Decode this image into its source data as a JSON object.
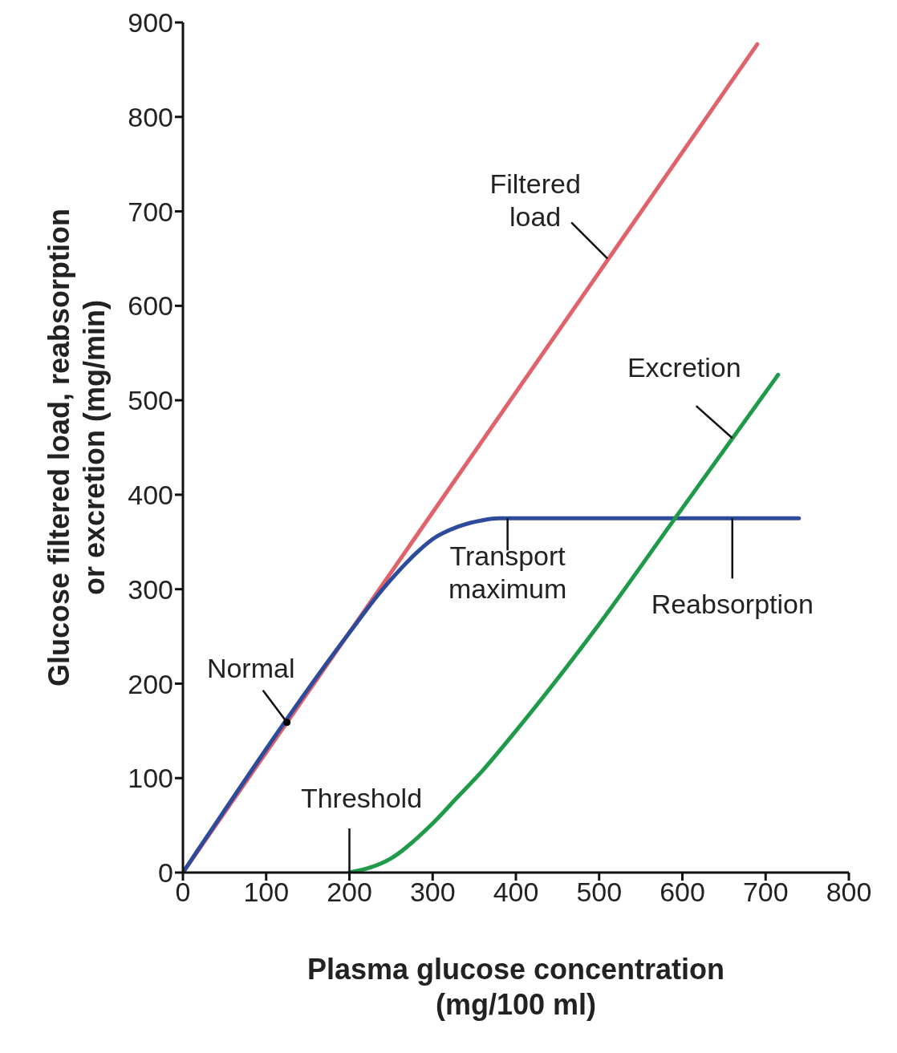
{
  "chart_data": {
    "type": "line",
    "xlabel": "Plasma glucose concentration\n(mg/100 ml)",
    "ylabel": "Glucose filtered load, reabsorption\nor excretion (mg/min)",
    "xlim": [
      0,
      800
    ],
    "xticks": [
      0,
      100,
      200,
      300,
      400,
      500,
      600,
      700,
      800
    ],
    "ylim": [
      0,
      900
    ],
    "yticks": [
      0,
      100,
      200,
      300,
      400,
      500,
      600,
      700,
      800,
      900
    ],
    "grid": false,
    "legend": false,
    "marker": "none",
    "line_style": "solid",
    "series": [
      {
        "color": "#e0636b",
        "x": [
          0,
          690
        ],
        "values": [
          0,
          877
        ]
      },
      {
        "color": "#2e4a9a",
        "x": [
          0,
          200,
          240,
          260,
          280,
          300,
          330,
          360,
          380,
          740
        ],
        "values": [
          0,
          254,
          300,
          320,
          338,
          353,
          366,
          373,
          375,
          375
        ]
      },
      {
        "color": "#1f9a48",
        "x": [
          200,
          250,
          300,
          330,
          360,
          400,
          500,
          592,
          715
        ],
        "values": [
          0,
          15,
          52,
          80,
          108,
          150,
          263,
          376,
          527
        ]
      },
      {
        "type": "scatter",
        "color": "#000000",
        "marker": "circle",
        "x": [
          125
        ],
        "values": [
          159
        ]
      }
    ],
    "annotations": [
      {
        "text": "Filtered\nload",
        "x": 510,
        "y": 650
      },
      {
        "text": "Excretion",
        "x": 660,
        "y": 460
      },
      {
        "text": "Transport\nmaximum",
        "x": 390,
        "y": 375
      },
      {
        "text": "Reabsorption",
        "x": 660,
        "y": 375
      },
      {
        "text": "Normal",
        "x": 125,
        "y": 159
      },
      {
        "text": "Threshold",
        "x": 200,
        "y": 0
      }
    ]
  }
}
